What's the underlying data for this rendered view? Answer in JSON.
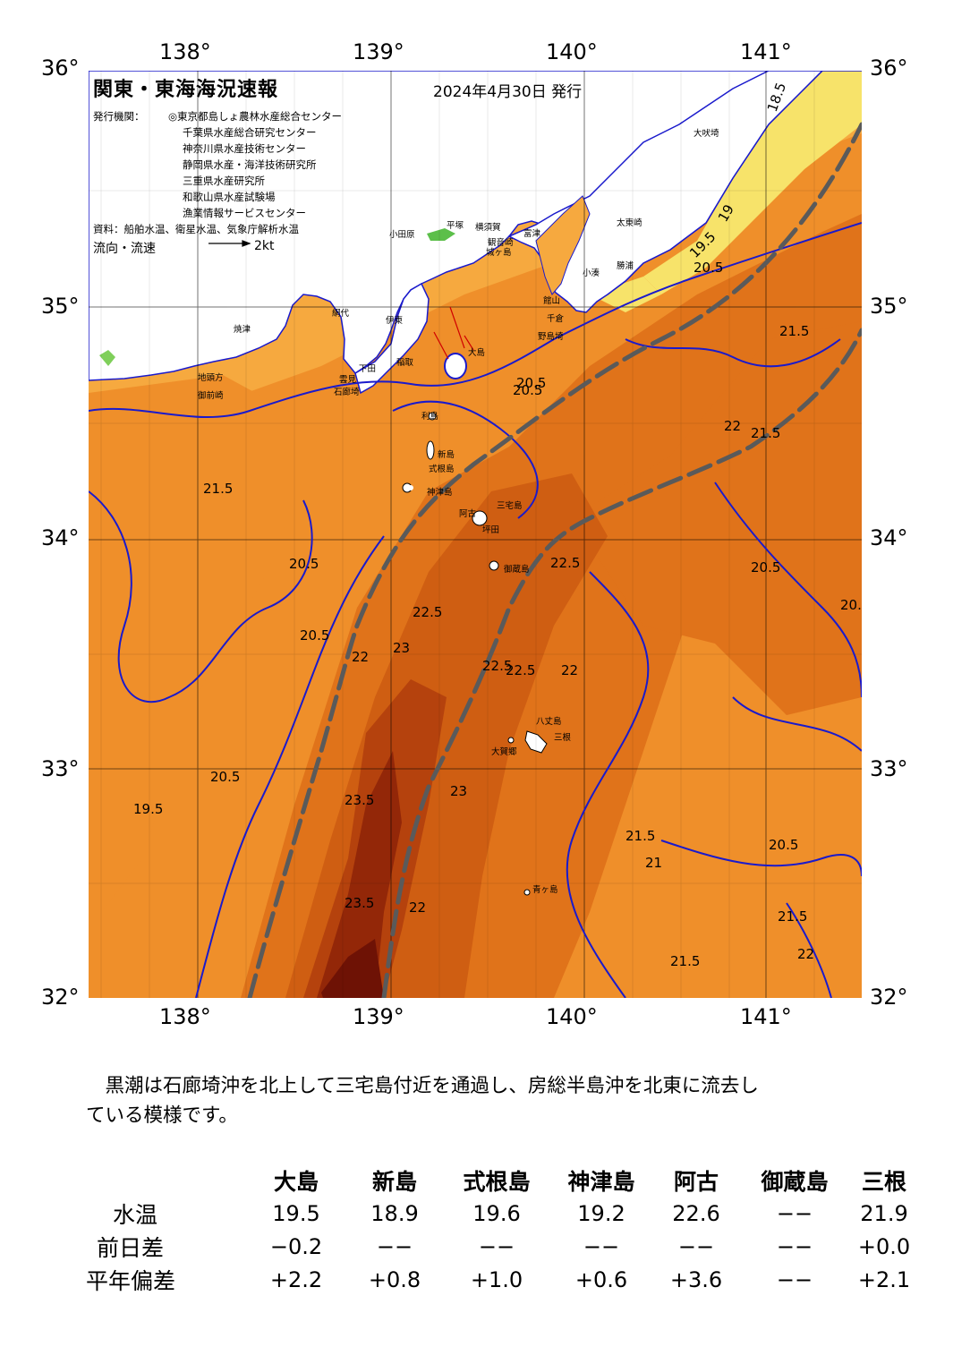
{
  "map": {
    "title": "関東・東海海況速報",
    "issued": "2024年4月30日 発行",
    "issuers_label": "発行機関：",
    "issuers": [
      "◎東京都島しょ農林水産総合センター",
      "千葉県水産総合研究センター",
      "神奈川県水産技術センター",
      "静岡県水産・海洋技術研究所",
      "三重県水産研究所",
      "和歌山県水産試験場",
      "漁業情報サービスセンター"
    ],
    "source": "資料：船舶水温、衛星水温、気象庁解析水温",
    "flow_legend": "流向・流速",
    "flow_scale": "2kt",
    "lon_labels": [
      "138°",
      "139°",
      "140°",
      "141°"
    ],
    "lat_labels": [
      "36°",
      "35°",
      "34°",
      "33°",
      "32°"
    ],
    "place_names": [
      "大吠埼",
      "太東崎",
      "勝浦",
      "小湊",
      "館山",
      "千倉",
      "野島埼",
      "大島",
      "利島",
      "新島",
      "式根島",
      "神津島",
      "三宅島",
      "阿古",
      "坪田",
      "御蔵島",
      "八丈島",
      "三根",
      "大賀郷",
      "青ヶ島",
      "富津",
      "観音崎",
      "横須賀",
      "平塚",
      "小田原",
      "城ヶ島",
      "網代",
      "伊東",
      "稲取",
      "下田",
      "石廊埼",
      "焼津",
      "御前崎",
      "地頭方",
      "雲見"
    ],
    "contour_labels": [
      "18.5",
      "19",
      "19.5",
      "20",
      "20.5",
      "21",
      "21.5",
      "22",
      "22.5",
      "23",
      "23.5"
    ],
    "colors": {
      "land": "#ffffff",
      "coastal": "#f7e36a",
      "t20": "#f6a93f",
      "t21": "#ef8f2a",
      "t22": "#e0731a",
      "t225": "#cf5e12",
      "t23": "#b5420d",
      "t235": "#932708",
      "isotherm": "#1a1acc",
      "kuroshio_axis": "#5a5a5a"
    }
  },
  "summary": {
    "line1": "　黒潮は石廊埼沖を北上して三宅島付近を通過し、房総半島沖を北東に流去し",
    "line2": "ている模様です。"
  },
  "table": {
    "columns": [
      "大島",
      "新島",
      "式根島",
      "神津島",
      "阿古",
      "御蔵島",
      "三根"
    ],
    "rows": [
      {
        "label": "水温",
        "values": [
          "19.5",
          "18.9",
          "19.6",
          "19.2",
          "22.6",
          "−−",
          "21.9"
        ]
      },
      {
        "label": "前日差",
        "values": [
          "−0.2",
          "−−",
          "−−",
          "−−",
          "−−",
          "−−",
          "+0.0"
        ]
      },
      {
        "label": "平年偏差",
        "values": [
          "+2.2",
          "+0.8",
          "+1.0",
          "+0.6",
          "+3.6",
          "−−",
          "+2.1"
        ]
      }
    ]
  }
}
